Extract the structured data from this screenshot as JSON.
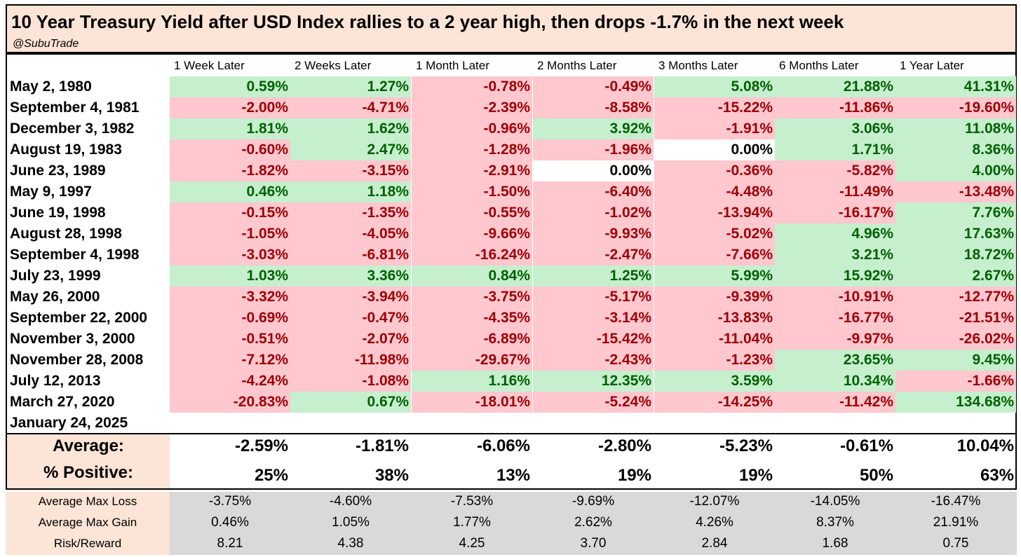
{
  "chart_data": {
    "type": "table",
    "title": "10 Year Treasury Yield after USD Index rallies to a 2 year high, then drops -1.7% in the next week",
    "subtitle": "@SubuTrade",
    "columns": [
      "1 Week Later",
      "2 Weeks Later",
      "1 Month Later",
      "2 Months Later",
      "3 Months Later",
      "6 Months Later",
      "1 Year Later"
    ],
    "rows": [
      {
        "date": "May 2, 1980",
        "values": [
          "0.59%",
          "1.27%",
          "-0.78%",
          "-0.49%",
          "5.08%",
          "21.88%",
          "41.31%"
        ]
      },
      {
        "date": "September 4, 1981",
        "values": [
          "-2.00%",
          "-4.71%",
          "-2.39%",
          "-8.58%",
          "-15.22%",
          "-11.86%",
          "-19.60%"
        ]
      },
      {
        "date": "December 3, 1982",
        "values": [
          "1.81%",
          "1.62%",
          "-0.96%",
          "3.92%",
          "-1.91%",
          "3.06%",
          "11.08%"
        ]
      },
      {
        "date": "August 19, 1983",
        "values": [
          "-0.60%",
          "2.47%",
          "-1.28%",
          "-1.96%",
          "0.00%",
          "1.71%",
          "8.36%"
        ]
      },
      {
        "date": "June 23, 1989",
        "values": [
          "-1.82%",
          "-3.15%",
          "-2.91%",
          "0.00%",
          "-0.36%",
          "-5.82%",
          "4.00%"
        ]
      },
      {
        "date": "May 9, 1997",
        "values": [
          "0.46%",
          "1.18%",
          "-1.50%",
          "-6.40%",
          "-4.48%",
          "-11.49%",
          "-13.48%"
        ]
      },
      {
        "date": "June 19, 1998",
        "values": [
          "-0.15%",
          "-1.35%",
          "-0.55%",
          "-1.02%",
          "-13.94%",
          "-16.17%",
          "7.76%"
        ]
      },
      {
        "date": "August 28, 1998",
        "values": [
          "-1.05%",
          "-4.05%",
          "-9.66%",
          "-9.93%",
          "-5.02%",
          "4.96%",
          "17.63%"
        ]
      },
      {
        "date": "September 4, 1998",
        "values": [
          "-3.03%",
          "-6.81%",
          "-16.24%",
          "-2.47%",
          "-7.66%",
          "3.21%",
          "18.72%"
        ]
      },
      {
        "date": "July 23, 1999",
        "values": [
          "1.03%",
          "3.36%",
          "0.84%",
          "1.25%",
          "5.99%",
          "15.92%",
          "2.67%"
        ]
      },
      {
        "date": "May 26, 2000",
        "values": [
          "-3.32%",
          "-3.94%",
          "-3.75%",
          "-5.17%",
          "-9.39%",
          "-10.91%",
          "-12.77%"
        ]
      },
      {
        "date": "September 22, 2000",
        "values": [
          "-0.69%",
          "-0.47%",
          "-4.35%",
          "-3.14%",
          "-13.83%",
          "-16.77%",
          "-21.51%"
        ]
      },
      {
        "date": "November 3, 2000",
        "values": [
          "-0.51%",
          "-2.07%",
          "-6.89%",
          "-15.42%",
          "-11.04%",
          "-9.97%",
          "-26.02%"
        ]
      },
      {
        "date": "November 28, 2008",
        "values": [
          "-7.12%",
          "-11.98%",
          "-29.67%",
          "-2.43%",
          "-1.23%",
          "23.65%",
          "9.45%"
        ]
      },
      {
        "date": "July 12, 2013",
        "values": [
          "-4.24%",
          "-1.08%",
          "1.16%",
          "12.35%",
          "3.59%",
          "10.34%",
          "-1.66%"
        ]
      },
      {
        "date": "March 27, 2020",
        "values": [
          "-20.83%",
          "0.67%",
          "-18.01%",
          "-5.24%",
          "-14.25%",
          "-11.42%",
          "134.68%"
        ]
      },
      {
        "date": "January 24, 2025",
        "values": [
          "",
          "",
          "",
          "",
          "",
          "",
          ""
        ]
      }
    ],
    "summary": [
      {
        "label": "Average:",
        "values": [
          "-2.59%",
          "-1.81%",
          "-6.06%",
          "-2.80%",
          "-5.23%",
          "-0.61%",
          "10.04%"
        ]
      },
      {
        "label": "% Positive:",
        "values": [
          "25%",
          "38%",
          "13%",
          "19%",
          "19%",
          "50%",
          "63%"
        ]
      }
    ],
    "stats": [
      {
        "label": "Average Max Loss",
        "values": [
          "-3.75%",
          "-4.60%",
          "-7.53%",
          "-9.69%",
          "-12.07%",
          "-14.05%",
          "-16.47%"
        ]
      },
      {
        "label": "Average Max Gain",
        "values": [
          "0.46%",
          "1.05%",
          "1.77%",
          "2.62%",
          "4.26%",
          "8.37%",
          "21.91%"
        ]
      },
      {
        "label": "Risk/Reward",
        "values": [
          "8.21",
          "4.38",
          "4.25",
          "3.70",
          "2.84",
          "1.68",
          "0.75"
        ]
      }
    ]
  },
  "colors": {
    "positive_bg": "#c6efce",
    "positive_text": "#006100",
    "negative_bg": "#ffc7ce",
    "negative_text": "#9c0006",
    "neutral_bg": "#ffffff",
    "neutral_text": "#000000",
    "label_bg": "#fce4d6",
    "stats_bg": "#d9d9d9"
  }
}
